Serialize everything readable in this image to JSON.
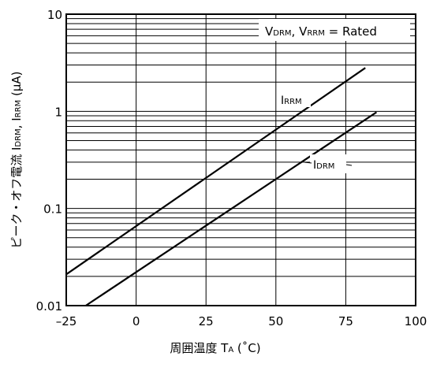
{
  "chart_data": {
    "type": "line",
    "x_scale": "linear",
    "y_scale": "log",
    "xlim": [
      -25,
      100
    ],
    "ylim": [
      0.01,
      10
    ],
    "x_ticks": [
      -25,
      0,
      25,
      50,
      75,
      100
    ],
    "x_tick_labels": [
      "–25",
      "0",
      "25",
      "50",
      "75",
      "100"
    ],
    "y_ticks": [
      0.01,
      0.1,
      1,
      10
    ],
    "y_tick_labels": [
      "0.01",
      "0.1",
      "1",
      "10"
    ],
    "xlabel": "周囲温度 TA (˚C)",
    "xlabel_main": "周囲温度  T",
    "xlabel_sub": "A",
    "xlabel_unit": " (˚C)",
    "ylabel": "ピーク・オフ電流 IDRM, IRRM (μA)",
    "ylabel_main": "ピーク・オフ電流  I",
    "ylabel_sub1": "DRM",
    "ylabel_mid": ", I",
    "ylabel_sub2": "RRM",
    "ylabel_unit": " (μA)",
    "legend_text": "VDRM, VRRM = Rated",
    "legend_v1": "V",
    "legend_sub1": "DRM",
    "legend_mid": ", V",
    "legend_sub2": "RRM",
    "legend_tail": " = Rated",
    "legend_position": "top-right",
    "grid": true,
    "series": [
      {
        "name": "IRRM",
        "label_main": "I",
        "label_sub": "RRM",
        "x": [
          -25,
          82
        ],
        "y": [
          0.021,
          2.8
        ]
      },
      {
        "name": "IDRM",
        "label_main": "I",
        "label_sub": "DRM",
        "x": [
          -18,
          86
        ],
        "y": [
          0.01,
          0.98
        ]
      }
    ]
  }
}
